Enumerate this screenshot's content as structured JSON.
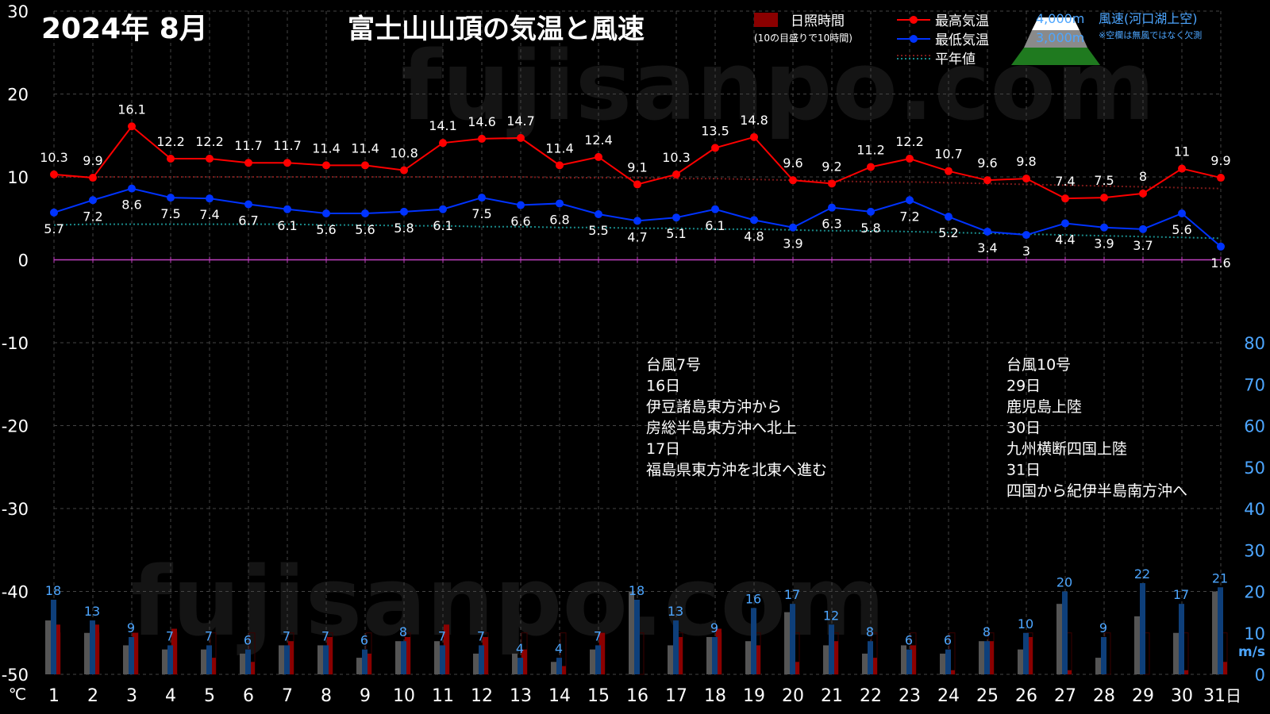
{
  "header": {
    "month_title": "2024年  8月",
    "main_title": "富士山山頂の気温と風速"
  },
  "legend": {
    "sunshine": "日照時間",
    "sunshine_note": "(10の目盛りで10時間)",
    "max_temp": "最高気温",
    "min_temp": "最低気温",
    "normal": "平年値",
    "alt_4000": "4,000m",
    "alt_3000": "3,000m",
    "wind": "風速(河口湖上空)",
    "wind_note": "※空欄は無風ではなく欠測"
  },
  "watermark": "fujisanpo.com",
  "annotations": {
    "typhoon7": [
      "台風7号",
      "16日",
      "伊豆諸島東方沖から",
      "房総半島東方沖へ北上",
      "17日",
      "福島県東方沖を北東へ進む"
    ],
    "typhoon10": [
      "台風10号",
      "29日",
      "鹿児島上陸",
      "30日",
      "九州横断四国上陸",
      "31日",
      "四国から紀伊半島南方沖へ"
    ]
  },
  "colors": {
    "max_temp": "#ff0000",
    "min_temp": "#0033ff",
    "normal_max": "#7a1a1a",
    "normal_min": "#1a8a8a",
    "zero_line": "#c040c0",
    "wind_label": "#4da6ff",
    "sunshine": "#8b0000",
    "bar_4000": "#0e3f7a",
    "bar_3000": "#555555",
    "axis_text": "#ffffff",
    "right_axis_text": "#4da6ff"
  },
  "chart_data": {
    "type": "line",
    "x": [
      1,
      2,
      3,
      4,
      5,
      6,
      7,
      8,
      9,
      10,
      11,
      12,
      13,
      14,
      15,
      16,
      17,
      18,
      19,
      20,
      21,
      22,
      23,
      24,
      25,
      26,
      27,
      28,
      29,
      30,
      31
    ],
    "x_unit_label": "日",
    "y_left_unit": "℃",
    "y_right_unit": "m/s",
    "ylim_left": [
      -50,
      30
    ],
    "yticks_left": [
      30,
      20,
      10,
      0,
      -10,
      -20,
      -30,
      -40,
      -50
    ],
    "ylim_right": [
      0,
      80
    ],
    "yticks_right": [
      80,
      70,
      60,
      50,
      40,
      30,
      20,
      10,
      0
    ],
    "grid": true,
    "series": [
      {
        "name": "最高気温",
        "values": [
          10.3,
          9.9,
          16.1,
          12.2,
          12.2,
          11.7,
          11.7,
          11.4,
          11.4,
          10.8,
          14.1,
          14.6,
          14.7,
          11.4,
          12.4,
          9.1,
          10.3,
          13.5,
          14.8,
          9.6,
          9.2,
          11.2,
          12.2,
          10.7,
          9.6,
          9.8,
          7.4,
          7.5,
          8,
          11,
          9.9
        ]
      },
      {
        "name": "最低気温",
        "values": [
          5.7,
          7.2,
          8.6,
          7.5,
          7.4,
          6.7,
          6.1,
          5.6,
          5.6,
          5.8,
          6.1,
          7.5,
          6.6,
          6.8,
          5.5,
          4.7,
          5.1,
          6.1,
          4.8,
          3.9,
          6.3,
          5.8,
          7.2,
          5.2,
          3.4,
          3,
          4.4,
          3.9,
          3.7,
          5.6,
          1.6
        ]
      },
      {
        "name": "平年値",
        "values_max": [
          10.0,
          10.0,
          10.0,
          10.0,
          10.0,
          10.0,
          10.0,
          10.0,
          10.0,
          10.0,
          10.0,
          10.0,
          10.0,
          9.9,
          9.9,
          9.9,
          9.8,
          9.8,
          9.7,
          9.6,
          9.5,
          9.4,
          9.4,
          9.3,
          9.2,
          9.1,
          9.0,
          8.9,
          8.8,
          8.7,
          8.6
        ],
        "values_min": [
          4.2,
          4.3,
          4.3,
          4.3,
          4.3,
          4.3,
          4.3,
          4.2,
          4.2,
          4.1,
          4.1,
          4.0,
          4.0,
          3.9,
          3.9,
          3.8,
          3.8,
          3.7,
          3.7,
          3.6,
          3.5,
          3.5,
          3.4,
          3.3,
          3.2,
          3.1,
          3.0,
          2.9,
          2.8,
          2.7,
          2.6
        ]
      },
      {
        "name": "風速 4,000m",
        "values": [
          18,
          13,
          9,
          7,
          7,
          6,
          7,
          7,
          6,
          8,
          7,
          7,
          4,
          4,
          7,
          18,
          13,
          9,
          16,
          17,
          12,
          8,
          6,
          6,
          8,
          10,
          20,
          9,
          22,
          17,
          21
        ]
      },
      {
        "name": "風速 3,000m",
        "values": [
          13,
          10,
          7,
          6,
          6,
          5,
          7,
          7,
          4,
          8,
          8,
          5,
          5,
          3,
          6,
          20,
          7,
          9,
          8,
          15,
          7,
          5,
          7,
          5,
          8,
          6,
          17,
          4,
          14,
          10,
          20
        ]
      },
      {
        "name": "日照時間",
        "values": [
          12,
          12,
          10,
          11,
          4,
          3,
          8,
          9,
          5,
          9,
          12,
          9,
          6,
          2,
          10,
          0,
          9,
          11,
          7,
          3,
          8,
          4,
          7,
          1,
          8,
          9,
          1,
          0,
          0,
          1,
          3
        ]
      }
    ]
  }
}
